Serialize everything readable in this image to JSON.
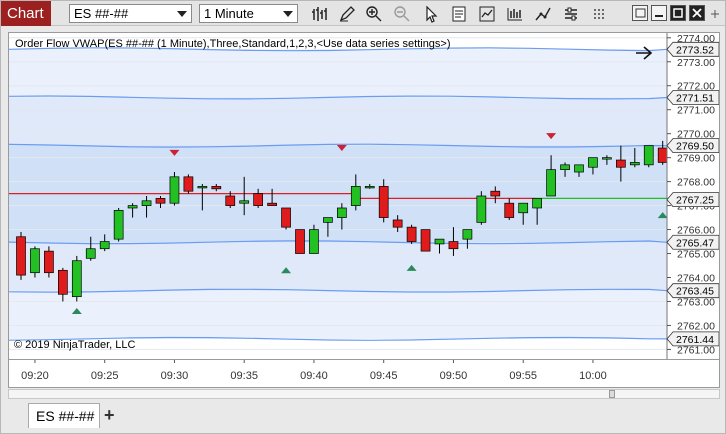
{
  "window": {
    "title": "Chart",
    "instrument": "ES ##-##",
    "interval": "1 Minute"
  },
  "toolbar_icons": [
    "bars-icon",
    "pencil-icon",
    "zoom-in-icon",
    "zoom-out-icon",
    "pointer-icon",
    "data-box-icon",
    "indicators-icon",
    "strategies-icon",
    "properties-icon",
    "restore-icon",
    "minimize-icon",
    "maximize-icon",
    "close-icon"
  ],
  "chart": {
    "indicator_label": "Order Flow VWAP(ES ##-## (1 Minute),Three,Standard,1,2,3,<Use data series settings>)",
    "copyright": "© 2019 NinjaTrader, LLC",
    "price_ticks": [
      "2774.00",
      "2773.00",
      "2772.00",
      "2771.00",
      "2770.00",
      "2769.00",
      "2768.00",
      "2767.00",
      "2766.00",
      "2765.00",
      "2764.00",
      "2763.00",
      "2762.00",
      "2761.00"
    ],
    "band_labels": [
      {
        "value": 2773.52,
        "text": "2773.52"
      },
      {
        "value": 2771.51,
        "text": "2771.51"
      },
      {
        "value": 2769.5,
        "text": "2769.50"
      },
      {
        "value": 2767.25,
        "text": "2767.25"
      },
      {
        "value": 2765.47,
        "text": "2765.47"
      },
      {
        "value": 2763.45,
        "text": "2763.45"
      },
      {
        "value": 2761.44,
        "text": "2761.44"
      }
    ],
    "time_labels": [
      "09:20",
      "09:25",
      "09:30",
      "09:35",
      "09:40",
      "09:45",
      "09:50",
      "09:55",
      "10:00"
    ],
    "colors": {
      "up": "#22c022",
      "down": "#e01b1b",
      "vwap_up": "#22c022",
      "vwap_down": "#e02020",
      "band": "#6b9cf0",
      "fill": "#cfe0f7",
      "marker_up": "#2a8a5a",
      "marker_down": "#cc2233"
    }
  },
  "chart_data": {
    "type": "candlestick",
    "time_start": "09:19",
    "candles": [
      {
        "o": 2765.7,
        "h": 2765.9,
        "l": 2763.9,
        "c": 2764.1
      },
      {
        "o": 2764.2,
        "h": 2765.3,
        "l": 2764.0,
        "c": 2765.2
      },
      {
        "o": 2765.1,
        "h": 2765.3,
        "l": 2764.0,
        "c": 2764.2
      },
      {
        "o": 2764.3,
        "h": 2764.4,
        "l": 2763.0,
        "c": 2763.3
      },
      {
        "o": 2763.2,
        "h": 2764.9,
        "l": 2763.0,
        "c": 2764.7
      },
      {
        "o": 2764.8,
        "h": 2765.7,
        "l": 2764.7,
        "c": 2765.2
      },
      {
        "o": 2765.2,
        "h": 2765.8,
        "l": 2765.1,
        "c": 2765.5
      },
      {
        "o": 2765.6,
        "h": 2766.9,
        "l": 2765.5,
        "c": 2766.8
      },
      {
        "o": 2766.9,
        "h": 2767.1,
        "l": 2766.5,
        "c": 2767.0
      },
      {
        "o": 2767.0,
        "h": 2767.4,
        "l": 2766.5,
        "c": 2767.2
      },
      {
        "o": 2767.3,
        "h": 2767.4,
        "l": 2766.9,
        "c": 2767.1
      },
      {
        "o": 2767.1,
        "h": 2768.4,
        "l": 2767.0,
        "c": 2768.2
      },
      {
        "o": 2768.2,
        "h": 2768.3,
        "l": 2767.5,
        "c": 2767.6
      },
      {
        "o": 2767.8,
        "h": 2767.9,
        "l": 2766.8,
        "c": 2767.8
      },
      {
        "o": 2767.8,
        "h": 2767.9,
        "l": 2767.6,
        "c": 2767.7
      },
      {
        "o": 2767.4,
        "h": 2767.6,
        "l": 2766.9,
        "c": 2767.0
      },
      {
        "o": 2767.1,
        "h": 2768.2,
        "l": 2766.6,
        "c": 2767.2
      },
      {
        "o": 2767.5,
        "h": 2767.7,
        "l": 2766.9,
        "c": 2767.0
      },
      {
        "o": 2767.1,
        "h": 2767.7,
        "l": 2767.0,
        "c": 2767.0
      },
      {
        "o": 2766.9,
        "h": 2766.9,
        "l": 2766.0,
        "c": 2766.1
      },
      {
        "o": 2766.0,
        "h": 2766.0,
        "l": 2765.0,
        "c": 2765.0
      },
      {
        "o": 2765.0,
        "h": 2766.2,
        "l": 2765.0,
        "c": 2766.0
      },
      {
        "o": 2766.3,
        "h": 2766.5,
        "l": 2765.7,
        "c": 2766.5
      },
      {
        "o": 2766.5,
        "h": 2767.1,
        "l": 2766.0,
        "c": 2766.9
      },
      {
        "o": 2767.0,
        "h": 2768.3,
        "l": 2766.8,
        "c": 2767.8
      },
      {
        "o": 2767.8,
        "h": 2767.9,
        "l": 2767.7,
        "c": 2767.8
      },
      {
        "o": 2767.8,
        "h": 2768.1,
        "l": 2766.3,
        "c": 2766.5
      },
      {
        "o": 2766.4,
        "h": 2766.6,
        "l": 2765.9,
        "c": 2766.1
      },
      {
        "o": 2766.1,
        "h": 2766.2,
        "l": 2765.4,
        "c": 2765.5
      },
      {
        "o": 2766.0,
        "h": 2766.0,
        "l": 2765.1,
        "c": 2765.1
      },
      {
        "o": 2765.4,
        "h": 2765.5,
        "l": 2765.0,
        "c": 2765.6
      },
      {
        "o": 2765.5,
        "h": 2766.1,
        "l": 2764.9,
        "c": 2765.2
      },
      {
        "o": 2765.6,
        "h": 2766.0,
        "l": 2765.2,
        "c": 2766.0
      },
      {
        "o": 2766.3,
        "h": 2767.6,
        "l": 2766.2,
        "c": 2767.4
      },
      {
        "o": 2767.6,
        "h": 2767.8,
        "l": 2767.1,
        "c": 2767.4
      },
      {
        "o": 2767.1,
        "h": 2767.3,
        "l": 2766.4,
        "c": 2766.5
      },
      {
        "o": 2766.7,
        "h": 2767.0,
        "l": 2766.2,
        "c": 2767.1
      },
      {
        "o": 2766.9,
        "h": 2767.3,
        "l": 2766.2,
        "c": 2767.3
      },
      {
        "o": 2767.4,
        "h": 2769.1,
        "l": 2767.4,
        "c": 2768.5
      },
      {
        "o": 2768.5,
        "h": 2768.8,
        "l": 2768.2,
        "c": 2768.7
      },
      {
        "o": 2768.4,
        "h": 2768.6,
        "l": 2768.2,
        "c": 2768.7
      },
      {
        "o": 2768.6,
        "h": 2769.0,
        "l": 2768.3,
        "c": 2769.0
      },
      {
        "o": 2769.0,
        "h": 2769.1,
        "l": 2768.7,
        "c": 2769.0
      },
      {
        "o": 2768.9,
        "h": 2769.5,
        "l": 2768.0,
        "c": 2768.6
      },
      {
        "o": 2768.7,
        "h": 2769.4,
        "l": 2768.6,
        "c": 2768.8
      },
      {
        "o": 2768.7,
        "h": 2769.4,
        "l": 2768.6,
        "c": 2769.5
      },
      {
        "o": 2769.4,
        "h": 2769.7,
        "l": 2768.7,
        "c": 2768.8
      },
      {
        "o": 2768.9,
        "h": 2769.0,
        "l": 2768.6,
        "c": 2768.7
      },
      {
        "o": 2768.9,
        "h": 2769.0,
        "l": 2767.3,
        "c": 2767.5
      },
      {
        "o": 2767.8,
        "h": 2767.9,
        "l": 2766.9,
        "c": 2767.4
      },
      {
        "o": 2767.3,
        "h": 2767.5,
        "l": 2766.9,
        "c": 2767.0
      }
    ],
    "vwap": [
      {
        "from": 0,
        "to": 24,
        "value": 2767.5,
        "color": "down"
      },
      {
        "from": 24,
        "to": 37,
        "value": 2767.3,
        "color": "down"
      },
      {
        "from": 37,
        "to": 51,
        "value": 2767.3,
        "color": "up"
      }
    ],
    "bands": [
      2773.52,
      2771.51,
      2769.5,
      2765.47,
      2763.45,
      2761.44
    ],
    "markers": [
      {
        "bar": 4,
        "dir": "up",
        "price": 2762.6
      },
      {
        "bar": 11,
        "dir": "down",
        "price": 2769.2
      },
      {
        "bar": 19,
        "dir": "up",
        "price": 2764.3
      },
      {
        "bar": 23,
        "dir": "down",
        "price": 2769.4
      },
      {
        "bar": 28,
        "dir": "up",
        "price": 2764.4
      },
      {
        "bar": 38,
        "dir": "down",
        "price": 2769.9
      },
      {
        "bar": 46,
        "dir": "up",
        "price": 2766.6
      }
    ],
    "ylim": [
      2760.6,
      2774.2
    ]
  }
}
